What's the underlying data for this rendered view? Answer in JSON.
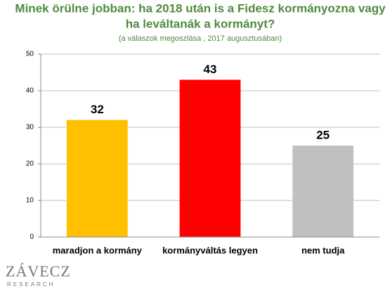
{
  "chart_data": {
    "type": "bar",
    "title": [
      "Minek örülne jobban: ha 2018 után is a Fidesz kormányozna vagy",
      "ha leváltanák a kormányt?"
    ],
    "subtitle": "(a válaszok megoszlása , 2017 augusztusában)",
    "categories": [
      "maradjon a kormány",
      "kormányváltás legyen",
      "nem tudja"
    ],
    "values": [
      32,
      43,
      25
    ],
    "colors": [
      "#ffc000",
      "#ff0000",
      "#c0c0c0"
    ],
    "ylim": [
      0,
      50
    ],
    "yticks": [
      0,
      10,
      20,
      30,
      40,
      50
    ],
    "grid": true
  },
  "logo": {
    "name": "ZÁVECZ",
    "sub": "RESEARCH"
  }
}
